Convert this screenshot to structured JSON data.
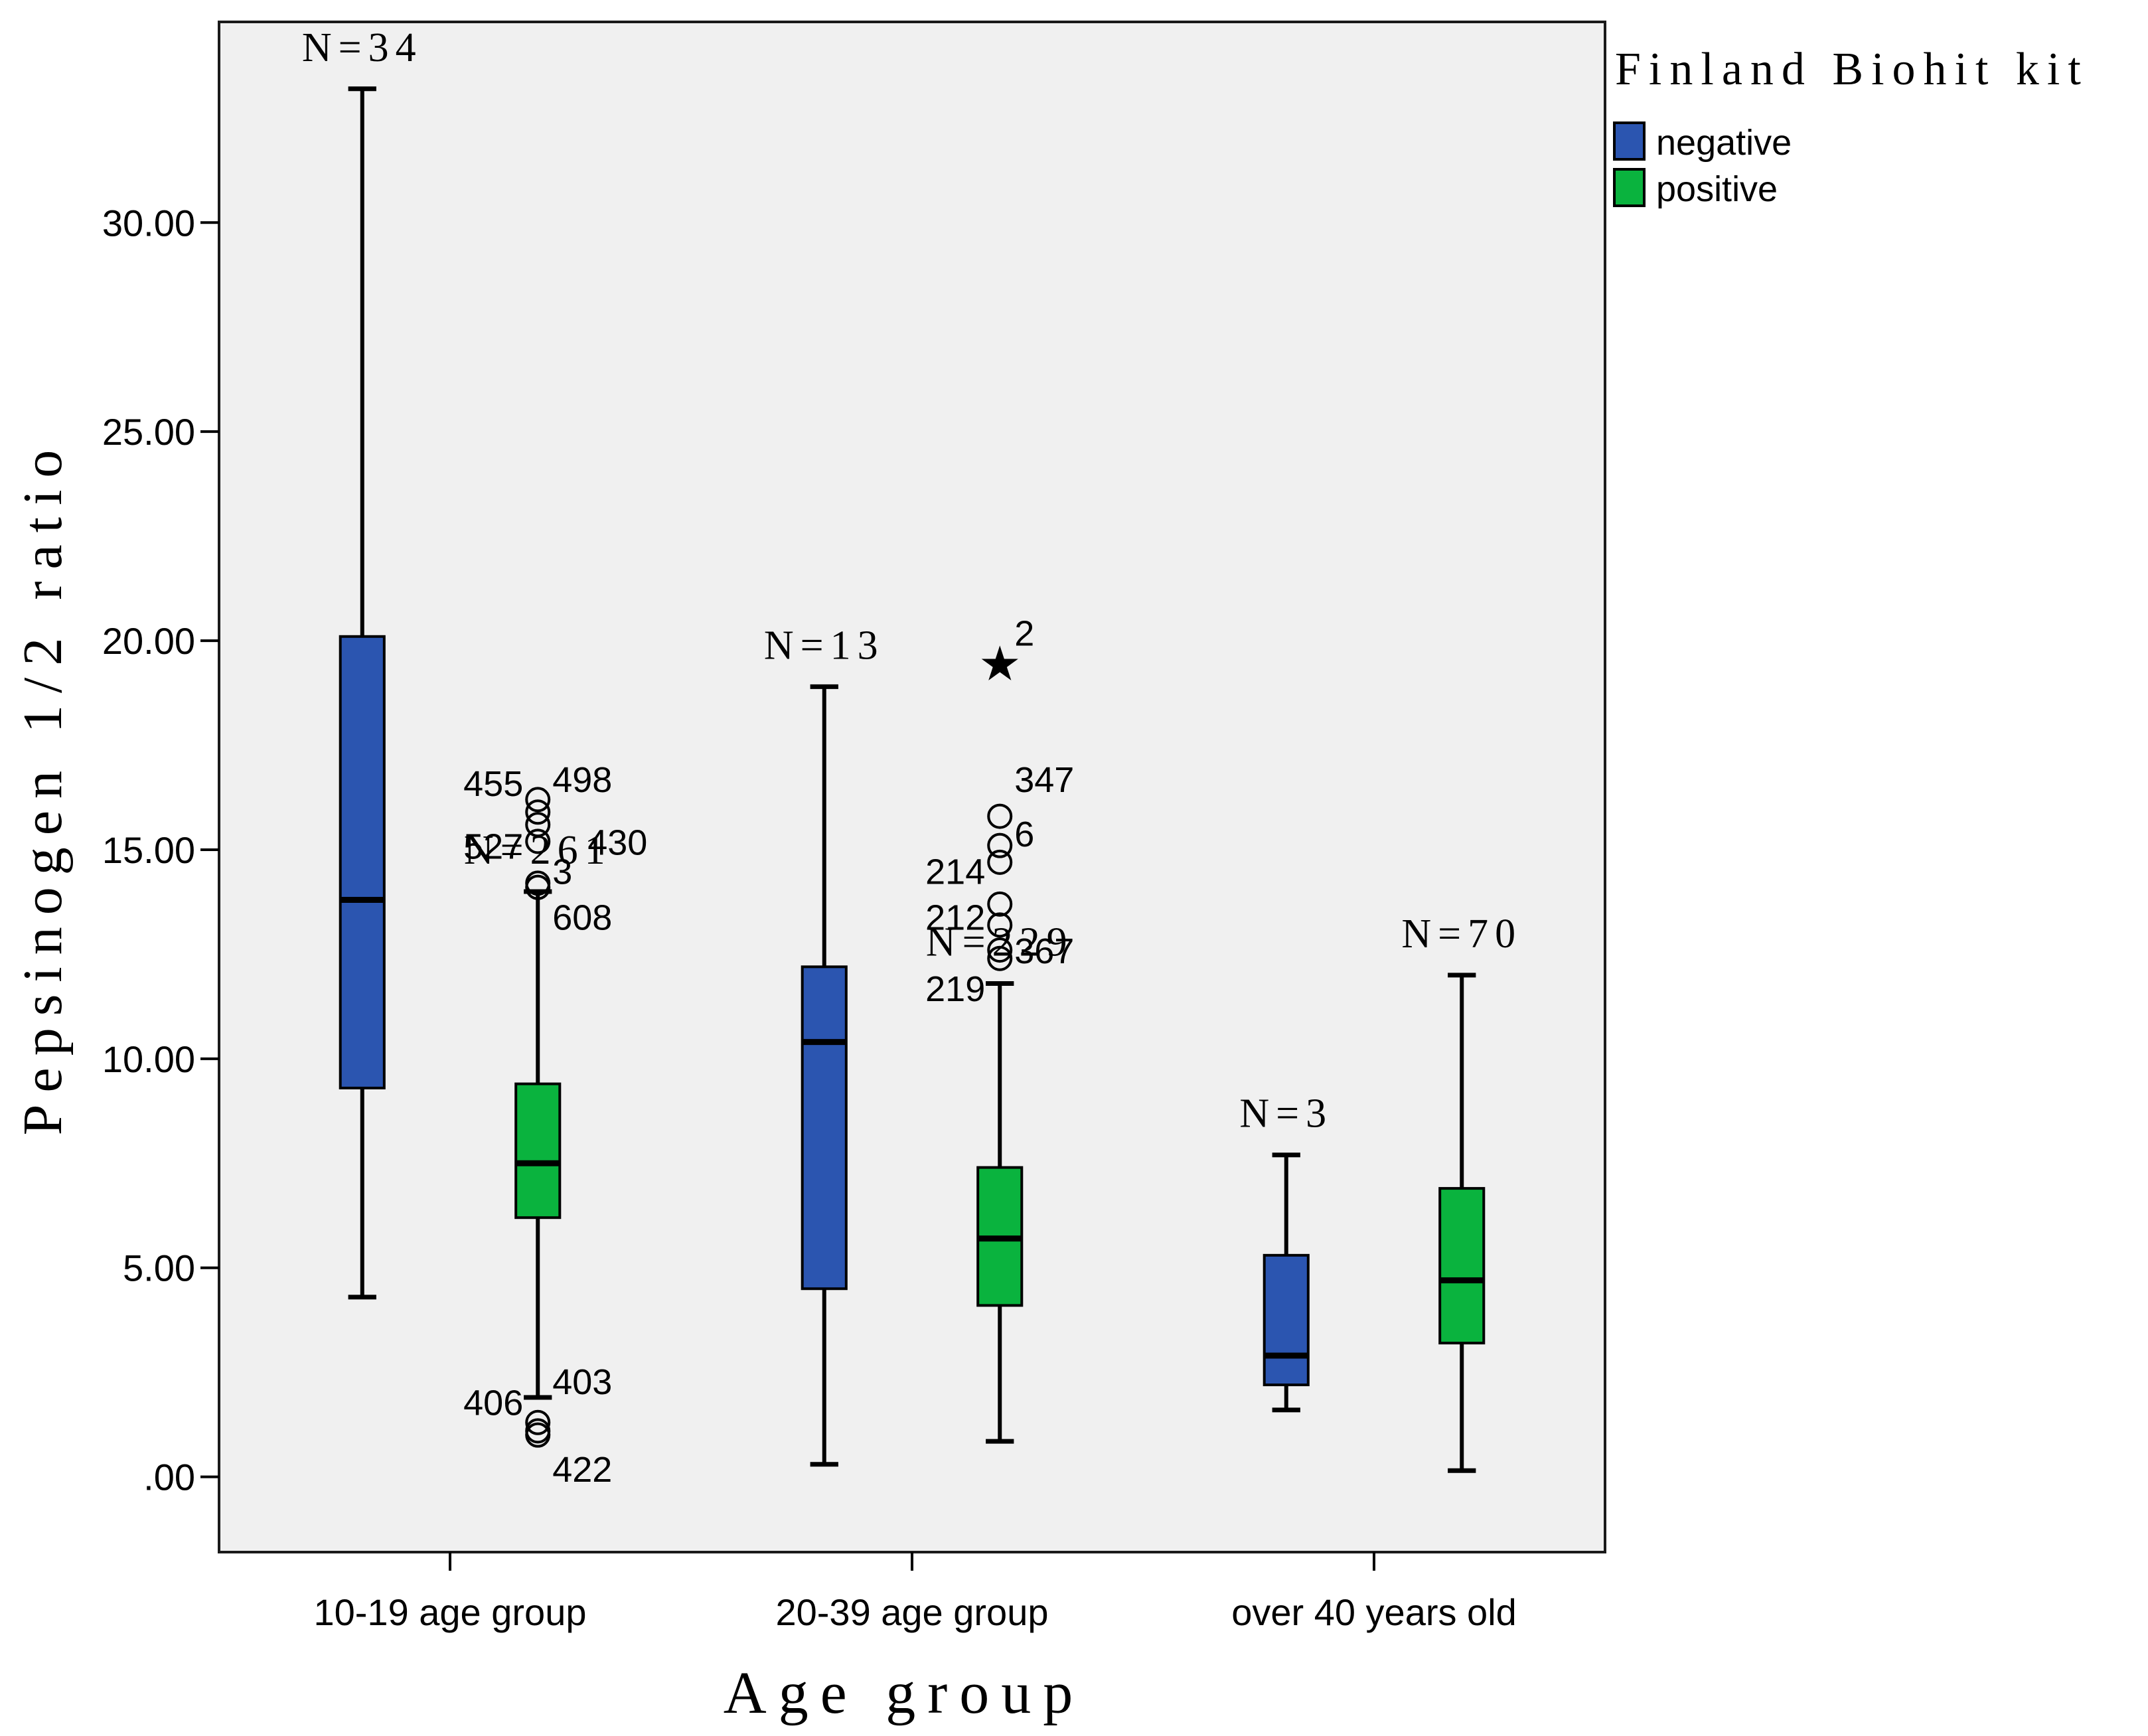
{
  "colors": {
    "negative": "#2B55B0",
    "positive": "#0AB33E",
    "plot_bg": "#F0F0F0",
    "frame": "#1A1A1A"
  },
  "legend": {
    "title": "Finland Biohit kit",
    "items": [
      {
        "label": "negative",
        "color": "#2B55B0"
      },
      {
        "label": "positive",
        "color": "#0AB33E"
      }
    ]
  },
  "chart_data": {
    "type": "boxplot",
    "title": "",
    "xlabel": "Age group",
    "ylabel": "Pepsinogen 1/2 ratio",
    "ylim": [
      -1.8,
      34.8
    ],
    "yticks": [
      0,
      5,
      10,
      15,
      20,
      25,
      30
    ],
    "ytick_labels": [
      ".00",
      "5.00",
      "10.00",
      "15.00",
      "20.00",
      "25.00",
      "30.00"
    ],
    "categories": [
      "10-19 age group",
      "20-39 age group",
      "over 40 years old"
    ],
    "series": [
      {
        "name": "negative",
        "boxes": [
          {
            "category": "10-19 age group",
            "n_label": "N=34",
            "min": 4.3,
            "q1": 9.3,
            "median": 13.8,
            "q3": 20.1,
            "max": 33.2,
            "outliers": []
          },
          {
            "category": "20-39 age group",
            "n_label": "N=13",
            "min": 0.3,
            "q1": 4.5,
            "median": 10.4,
            "q3": 12.2,
            "max": 18.9,
            "outliers": []
          },
          {
            "category": "over 40 years old",
            "n_label": "N=3",
            "min": 1.6,
            "q1": 2.2,
            "median": 2.9,
            "q3": 5.3,
            "max": 7.7,
            "outliers": []
          }
        ]
      },
      {
        "name": "positive",
        "boxes": [
          {
            "category": "10-19 age group",
            "n_label": "N=261",
            "min": 1.9,
            "q1": 6.2,
            "median": 7.5,
            "q3": 9.4,
            "max": 14.0,
            "outliers": [
              {
                "value": 16.2,
                "label": "455"
              },
              {
                "value": 15.9,
                "label": "498"
              },
              {
                "value": 15.6,
                "label": ""
              },
              {
                "value": 15.2,
                "label": "527"
              },
              {
                "value": 14.2,
                "label": "3"
              },
              {
                "value": 14.1,
                "label": ""
              },
              {
                "value": 1.3,
                "label": "406"
              },
              {
                "value": 1.1,
                "label": ""
              },
              {
                "value": 1.0,
                "label": "422"
              }
            ],
            "outlier_labels": [
              {
                "text": "455",
                "y": 16.6,
                "side": "left"
              },
              {
                "text": "498",
                "y": 16.7,
                "side": "right"
              },
              {
                "text": "527",
                "y": 15.1,
                "side": "left"
              },
              {
                "text": "430",
                "y": 15.2,
                "side": "far-right"
              },
              {
                "text": "3",
                "y": 14.5,
                "side": "right"
              },
              {
                "text": "608",
                "y": 13.4,
                "side": "right"
              },
              {
                "text": "406",
                "y": 1.8,
                "side": "left"
              },
              {
                "text": "403",
                "y": 2.3,
                "side": "right"
              },
              {
                "text": "422",
                "y": 0.2,
                "side": "right"
              }
            ]
          },
          {
            "category": "20-39 age group",
            "n_label": "N=229",
            "min": 0.85,
            "q1": 4.1,
            "median": 5.7,
            "q3": 7.4,
            "max": 11.8,
            "outliers": [
              {
                "value": 15.8,
                "label": "347"
              },
              {
                "value": 15.1,
                "label": "6"
              },
              {
                "value": 14.7,
                "label": "214"
              },
              {
                "value": 13.7,
                "label": "212"
              },
              {
                "value": 13.2,
                "label": ""
              },
              {
                "value": 12.6,
                "label": "367"
              },
              {
                "value": 12.4,
                "label": "219"
              }
            ],
            "extremes": [
              {
                "value": 19.6,
                "label": "2"
              }
            ],
            "outlier_labels": [
              {
                "text": "347",
                "y": 16.7,
                "side": "right"
              },
              {
                "text": "6",
                "y": 15.4,
                "side": "right"
              },
              {
                "text": "214",
                "y": 14.5,
                "side": "left"
              },
              {
                "text": "212",
                "y": 13.4,
                "side": "left"
              },
              {
                "text": "367",
                "y": 12.6,
                "side": "right"
              },
              {
                "text": "219",
                "y": 11.7,
                "side": "left"
              },
              {
                "text": "2",
                "y": 20.2,
                "side": "right"
              }
            ]
          },
          {
            "category": "over 40 years old",
            "n_label": "N=70",
            "min": 0.15,
            "q1": 3.2,
            "median": 4.7,
            "q3": 6.9,
            "max": 12.0,
            "outliers": []
          }
        ]
      }
    ]
  }
}
